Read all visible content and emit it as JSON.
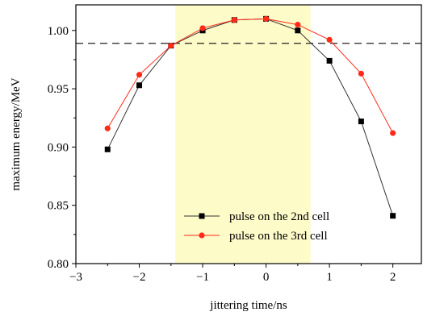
{
  "chart_data": {
    "type": "line",
    "xlabel": "jittering time/ns",
    "ylabel": "maximum energy/MeV",
    "xlim": [
      -3,
      2.45
    ],
    "ylim": [
      0.8,
      1.022
    ],
    "xticks": [
      -3,
      -2,
      -1,
      0,
      1,
      2
    ],
    "xtick_labels": [
      "−3",
      "−2",
      "−1",
      "0",
      "1",
      "2"
    ],
    "yticks": [
      0.8,
      0.85,
      0.9,
      0.95,
      1.0
    ],
    "ytick_labels": [
      "0.80",
      "0.85",
      "0.90",
      "0.95",
      "1.00"
    ],
    "highlight_band": {
      "x_from": -1.43,
      "x_to": 0.7,
      "color": "#fdfbc8"
    },
    "reference_line": {
      "y": 0.989,
      "style": "dashed",
      "color": "#222222"
    },
    "legend_position": "lower-center",
    "series": [
      {
        "name": "pulse on the 2nd cell",
        "color": "#000000",
        "line_color": "#333333",
        "marker": "square",
        "x": [
          -2.5,
          -2.0,
          -1.5,
          -1.0,
          -0.5,
          0.0,
          0.5,
          1.0,
          1.5,
          2.0
        ],
        "y": [
          0.898,
          0.953,
          0.987,
          1.0,
          1.009,
          1.01,
          1.0,
          0.974,
          0.922,
          0.841
        ]
      },
      {
        "name": "pulse on the 3rd cell",
        "color": "#ff2a1a",
        "line_color": "#ff2a1a",
        "marker": "circle",
        "x": [
          -2.5,
          -2.0,
          -1.5,
          -1.0,
          -0.5,
          0.0,
          0.5,
          1.0,
          1.5,
          2.0
        ],
        "y": [
          0.916,
          0.962,
          0.987,
          1.002,
          1.009,
          1.01,
          1.005,
          0.992,
          0.963,
          0.912
        ]
      }
    ]
  }
}
